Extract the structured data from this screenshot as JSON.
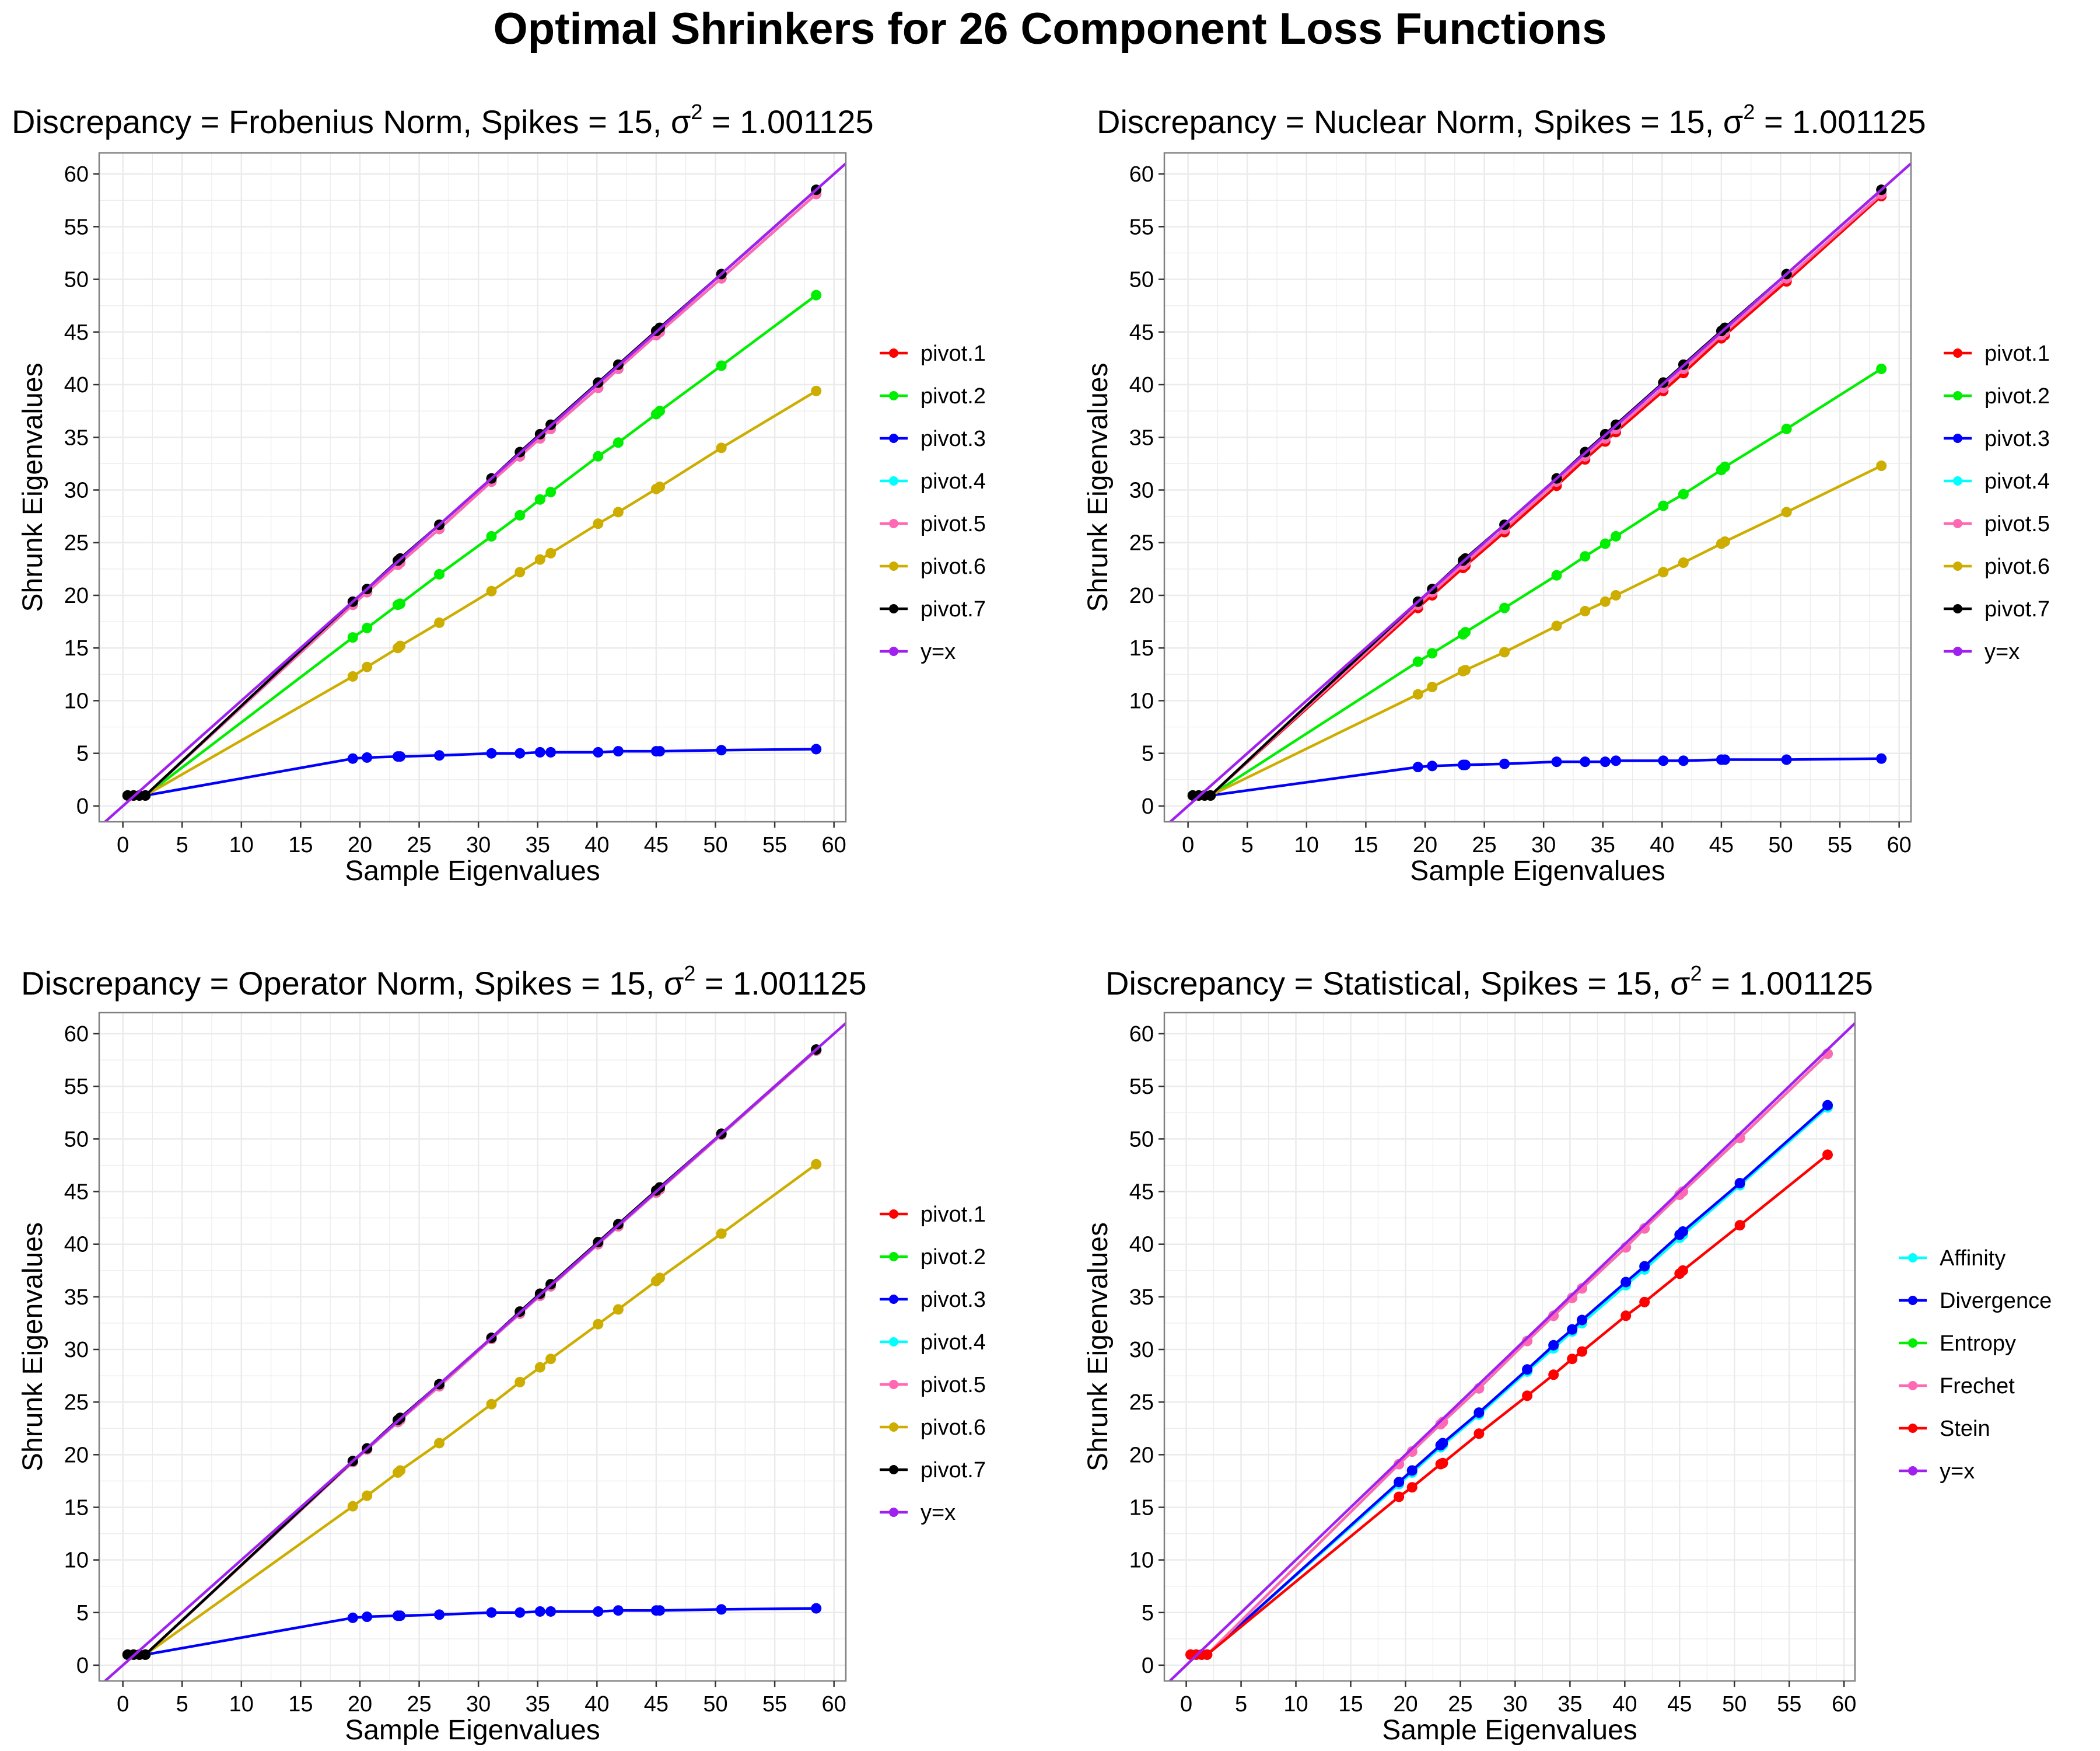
{
  "main_title": "Optimal Shrinkers for 26 Component Loss Functions",
  "colors": {
    "pivot.1": "#ff0000",
    "pivot.2": "#00ee00",
    "pivot.3": "#0000ff",
    "pivot.4": "#00ffff",
    "pivot.5": "#ff69b4",
    "pivot.6": "#cdad00",
    "pivot.7": "#000000",
    "y=x": "#a020f0",
    "Affinity": "#00ffff",
    "Divergence": "#0000ff",
    "Entropy": "#00ee00",
    "Frechet": "#ff69b4",
    "Stein": "#ff0000",
    "panel_border": "#808080",
    "grid": "#ebebeb"
  },
  "chart_data": [
    {
      "type": "line",
      "title_prefix": "Discrepancy",
      "title_value": "Frobenius Norm",
      "title_spikes": "15",
      "title_sigma": "1.001125",
      "xlabel": "Sample Eigenvalues",
      "ylabel": "Shrunk Eigenvalues",
      "xlim": [
        -2,
        61
      ],
      "ylim": [
        -1.5,
        62
      ],
      "x_ticks": [
        0,
        5,
        10,
        15,
        20,
        25,
        30,
        35,
        40,
        45,
        50,
        55,
        60
      ],
      "y_ticks": [
        0,
        5,
        10,
        15,
        20,
        25,
        30,
        35,
        40,
        45,
        50,
        55,
        60
      ],
      "grid": true,
      "legend_position": "right",
      "x": [
        0.4,
        0.9,
        1.4,
        1.9,
        19.4,
        20.6,
        23.2,
        23.4,
        26.7,
        31.1,
        33.5,
        35.2,
        36.1,
        40.1,
        41.8,
        45.0,
        45.3,
        50.5,
        58.5
      ],
      "series": [
        {
          "name": "pivot.1",
          "values": [
            1.0,
            1.0,
            1.0,
            1.0,
            19.1,
            20.3,
            22.9,
            23.1,
            26.3,
            30.8,
            33.2,
            34.9,
            35.8,
            39.7,
            41.5,
            44.7,
            45.0,
            50.1,
            58.1
          ]
        },
        {
          "name": "pivot.2",
          "values": [
            1.0,
            1.0,
            1.0,
            1.0,
            16.0,
            16.9,
            19.1,
            19.2,
            22.0,
            25.6,
            27.6,
            29.1,
            29.8,
            33.2,
            34.5,
            37.2,
            37.5,
            41.8,
            48.5
          ]
        },
        {
          "name": "pivot.3",
          "values": [
            1.0,
            1.0,
            1.0,
            1.0,
            4.5,
            4.6,
            4.7,
            4.7,
            4.8,
            5.0,
            5.0,
            5.1,
            5.1,
            5.1,
            5.2,
            5.2,
            5.2,
            5.3,
            5.4
          ]
        },
        {
          "name": "pivot.4",
          "values": [
            1.0,
            1.0,
            1.0,
            1.0,
            19.1,
            20.3,
            22.9,
            23.1,
            26.3,
            30.8,
            33.2,
            34.9,
            35.8,
            39.7,
            41.5,
            44.7,
            45.0,
            50.1,
            58.1
          ]
        },
        {
          "name": "pivot.5",
          "values": [
            1.0,
            1.0,
            1.0,
            1.0,
            19.1,
            20.3,
            22.9,
            23.1,
            26.3,
            30.8,
            33.2,
            34.9,
            35.8,
            39.7,
            41.5,
            44.7,
            45.0,
            50.1,
            58.1
          ]
        },
        {
          "name": "pivot.6",
          "values": [
            1.0,
            1.0,
            1.0,
            1.0,
            12.3,
            13.2,
            15.0,
            15.2,
            17.4,
            20.4,
            22.2,
            23.4,
            24.0,
            26.8,
            27.9,
            30.1,
            30.3,
            34.0,
            39.4
          ]
        },
        {
          "name": "pivot.7",
          "values": [
            1.0,
            1.0,
            1.0,
            1.0,
            19.4,
            20.6,
            23.3,
            23.5,
            26.7,
            31.1,
            33.6,
            35.3,
            36.2,
            40.2,
            41.9,
            45.1,
            45.4,
            50.5,
            58.5
          ]
        }
      ],
      "reference_line": {
        "name": "y=x",
        "x": [
          -2,
          61
        ],
        "y": [
          -2,
          61
        ]
      },
      "legend": [
        "pivot.1",
        "pivot.2",
        "pivot.3",
        "pivot.4",
        "pivot.5",
        "pivot.6",
        "pivot.7",
        "y=x"
      ]
    },
    {
      "type": "line",
      "title_prefix": "Discrepancy",
      "title_value": "Nuclear Norm",
      "title_spikes": "15",
      "title_sigma": "1.001125",
      "xlabel": "Sample Eigenvalues",
      "ylabel": "Shrunk Eigenvalues",
      "xlim": [
        -2,
        61
      ],
      "ylim": [
        -1.5,
        62
      ],
      "x_ticks": [
        0,
        5,
        10,
        15,
        20,
        25,
        30,
        35,
        40,
        45,
        50,
        55,
        60
      ],
      "y_ticks": [
        0,
        5,
        10,
        15,
        20,
        25,
        30,
        35,
        40,
        45,
        50,
        55,
        60
      ],
      "grid": true,
      "legend_position": "right",
      "x": [
        0.4,
        0.9,
        1.4,
        1.9,
        19.4,
        20.6,
        23.2,
        23.4,
        26.7,
        31.1,
        33.5,
        35.2,
        36.1,
        40.1,
        41.8,
        45.0,
        45.3,
        50.5,
        58.5
      ],
      "series": [
        {
          "name": "pivot.1",
          "values": [
            1.0,
            1.0,
            1.0,
            1.0,
            18.8,
            20.0,
            22.6,
            22.8,
            26.0,
            30.4,
            32.9,
            34.6,
            35.5,
            39.4,
            41.1,
            44.4,
            44.7,
            49.8,
            57.9
          ]
        },
        {
          "name": "pivot.2",
          "values": [
            1.0,
            1.0,
            1.0,
            1.0,
            13.7,
            14.5,
            16.3,
            16.5,
            18.8,
            21.9,
            23.7,
            24.9,
            25.6,
            28.5,
            29.6,
            31.9,
            32.2,
            35.8,
            41.5
          ]
        },
        {
          "name": "pivot.3",
          "values": [
            1.0,
            1.0,
            1.0,
            1.0,
            3.7,
            3.8,
            3.9,
            3.9,
            4.0,
            4.2,
            4.2,
            4.2,
            4.3,
            4.3,
            4.3,
            4.4,
            4.4,
            4.4,
            4.5
          ]
        },
        {
          "name": "pivot.4",
          "values": [
            1.0,
            1.0,
            1.0,
            1.0,
            19.1,
            20.3,
            22.9,
            23.1,
            26.3,
            30.8,
            33.2,
            34.9,
            35.8,
            39.7,
            41.5,
            44.7,
            45.0,
            50.1,
            58.1
          ]
        },
        {
          "name": "pivot.5",
          "values": [
            1.0,
            1.0,
            1.0,
            1.0,
            19.1,
            20.3,
            22.9,
            23.1,
            26.3,
            30.8,
            33.2,
            34.9,
            35.8,
            39.7,
            41.5,
            44.7,
            45.0,
            50.1,
            58.1
          ]
        },
        {
          "name": "pivot.6",
          "values": [
            1.0,
            1.0,
            1.0,
            1.0,
            10.6,
            11.3,
            12.8,
            12.9,
            14.6,
            17.1,
            18.5,
            19.4,
            20.0,
            22.2,
            23.1,
            24.9,
            25.1,
            27.9,
            32.3
          ]
        },
        {
          "name": "pivot.7",
          "values": [
            1.0,
            1.0,
            1.0,
            1.0,
            19.4,
            20.6,
            23.3,
            23.5,
            26.7,
            31.1,
            33.6,
            35.3,
            36.2,
            40.2,
            41.9,
            45.1,
            45.4,
            50.5,
            58.5
          ]
        }
      ],
      "reference_line": {
        "name": "y=x",
        "x": [
          -2,
          61
        ],
        "y": [
          -2,
          61
        ]
      },
      "legend": [
        "pivot.1",
        "pivot.2",
        "pivot.3",
        "pivot.4",
        "pivot.5",
        "pivot.6",
        "pivot.7",
        "y=x"
      ]
    },
    {
      "type": "line",
      "title_prefix": "Discrepancy",
      "title_value": "Operator Norm",
      "title_spikes": "15",
      "title_sigma": "1.001125",
      "xlabel": "Sample Eigenvalues",
      "ylabel": "Shrunk Eigenvalues",
      "xlim": [
        -2,
        61
      ],
      "ylim": [
        -1.5,
        62
      ],
      "x_ticks": [
        0,
        5,
        10,
        15,
        20,
        25,
        30,
        35,
        40,
        45,
        50,
        55,
        60
      ],
      "y_ticks": [
        0,
        5,
        10,
        15,
        20,
        25,
        30,
        35,
        40,
        45,
        50,
        55,
        60
      ],
      "grid": true,
      "legend_position": "right",
      "x": [
        0.4,
        0.9,
        1.4,
        1.9,
        19.4,
        20.6,
        23.2,
        23.4,
        26.7,
        31.1,
        33.5,
        35.2,
        36.1,
        40.1,
        41.8,
        45.0,
        45.3,
        50.5,
        58.5
      ],
      "series": [
        {
          "name": "pivot.1",
          "values": [
            1.0,
            1.0,
            1.0,
            1.0,
            19.3,
            20.5,
            23.1,
            23.3,
            26.5,
            31.0,
            33.4,
            35.1,
            36.0,
            40.0,
            41.7,
            44.9,
            45.2,
            50.4,
            58.4
          ]
        },
        {
          "name": "pivot.2",
          "values": [
            1.0,
            1.0,
            1.0,
            1.0,
            19.3,
            20.5,
            23.1,
            23.3,
            26.5,
            31.0,
            33.4,
            35.1,
            36.0,
            40.0,
            41.7,
            44.9,
            45.2,
            50.4,
            58.4
          ]
        },
        {
          "name": "pivot.3",
          "values": [
            1.0,
            1.0,
            1.0,
            1.0,
            4.5,
            4.6,
            4.7,
            4.7,
            4.8,
            5.0,
            5.0,
            5.1,
            5.1,
            5.1,
            5.2,
            5.2,
            5.2,
            5.3,
            5.4
          ]
        },
        {
          "name": "pivot.4",
          "values": [
            1.0,
            1.0,
            1.0,
            1.0,
            19.3,
            20.5,
            23.1,
            23.3,
            26.5,
            31.0,
            33.4,
            35.1,
            36.0,
            40.0,
            41.7,
            44.9,
            45.2,
            50.4,
            58.4
          ]
        },
        {
          "name": "pivot.5",
          "values": [
            1.0,
            1.0,
            1.0,
            1.0,
            19.3,
            20.5,
            23.1,
            23.3,
            26.5,
            31.0,
            33.4,
            35.1,
            36.0,
            40.0,
            41.7,
            44.9,
            45.2,
            50.4,
            58.4
          ]
        },
        {
          "name": "pivot.6",
          "values": [
            1.0,
            1.0,
            1.0,
            1.0,
            15.1,
            16.1,
            18.3,
            18.5,
            21.1,
            24.8,
            26.9,
            28.3,
            29.1,
            32.4,
            33.8,
            36.5,
            36.8,
            41.0,
            47.6
          ]
        },
        {
          "name": "pivot.7",
          "values": [
            1.0,
            1.0,
            1.0,
            1.0,
            19.4,
            20.6,
            23.3,
            23.5,
            26.7,
            31.1,
            33.6,
            35.3,
            36.2,
            40.2,
            41.9,
            45.1,
            45.4,
            50.5,
            58.5
          ]
        }
      ],
      "reference_line": {
        "name": "y=x",
        "x": [
          -2,
          61
        ],
        "y": [
          -2,
          61
        ]
      },
      "legend": [
        "pivot.1",
        "pivot.2",
        "pivot.3",
        "pivot.4",
        "pivot.5",
        "pivot.6",
        "pivot.7",
        "y=x"
      ]
    },
    {
      "type": "line",
      "title_prefix": "Discrepancy",
      "title_value": "Statistical",
      "title_spikes": "15",
      "title_sigma": "1.001125",
      "xlabel": "Sample Eigenvalues",
      "ylabel": "Shrunk Eigenvalues",
      "xlim": [
        -2,
        61
      ],
      "ylim": [
        -1.5,
        62
      ],
      "x_ticks": [
        0,
        5,
        10,
        15,
        20,
        25,
        30,
        35,
        40,
        45,
        50,
        55,
        60
      ],
      "y_ticks": [
        0,
        5,
        10,
        15,
        20,
        25,
        30,
        35,
        40,
        45,
        50,
        55,
        60
      ],
      "grid": true,
      "legend_position": "right",
      "x": [
        0.4,
        0.9,
        1.4,
        1.9,
        19.4,
        20.6,
        23.2,
        23.4,
        26.7,
        31.1,
        33.5,
        35.2,
        36.1,
        40.1,
        41.8,
        45.0,
        45.3,
        50.5,
        58.5
      ],
      "series": [
        {
          "name": "Affinity",
          "values": [
            1.0,
            1.0,
            1.0,
            1.0,
            17.2,
            18.3,
            20.7,
            20.9,
            23.8,
            27.9,
            30.1,
            31.7,
            32.5,
            36.1,
            37.6,
            40.6,
            40.9,
            45.6,
            53.0
          ]
        },
        {
          "name": "Divergence",
          "values": [
            1.0,
            1.0,
            1.0,
            1.0,
            17.4,
            18.5,
            20.9,
            21.1,
            24.0,
            28.1,
            30.4,
            31.9,
            32.8,
            36.4,
            37.9,
            40.9,
            41.2,
            45.8,
            53.2
          ]
        },
        {
          "name": "Entropy",
          "values": [
            1.0,
            1.0,
            1.0,
            1.0,
            19.1,
            20.3,
            22.9,
            23.1,
            26.3,
            30.8,
            33.2,
            34.9,
            35.8,
            39.7,
            41.5,
            44.7,
            45.0,
            50.1,
            58.1
          ]
        },
        {
          "name": "Frechet",
          "values": [
            1.0,
            1.0,
            1.0,
            1.0,
            19.1,
            20.3,
            22.9,
            23.1,
            26.3,
            30.8,
            33.2,
            34.9,
            35.8,
            39.7,
            41.5,
            44.7,
            45.0,
            50.1,
            58.1
          ]
        },
        {
          "name": "Stein",
          "values": [
            1.0,
            1.0,
            1.0,
            1.0,
            16.0,
            16.9,
            19.1,
            19.2,
            22.0,
            25.6,
            27.6,
            29.1,
            29.8,
            33.2,
            34.5,
            37.2,
            37.5,
            41.8,
            48.5
          ]
        }
      ],
      "reference_line": {
        "name": "y=x",
        "x": [
          -2,
          61
        ],
        "y": [
          -2,
          61
        ]
      },
      "legend": [
        "Affinity",
        "Divergence",
        "Entropy",
        "Frechet",
        "Stein",
        "y=x"
      ]
    }
  ]
}
